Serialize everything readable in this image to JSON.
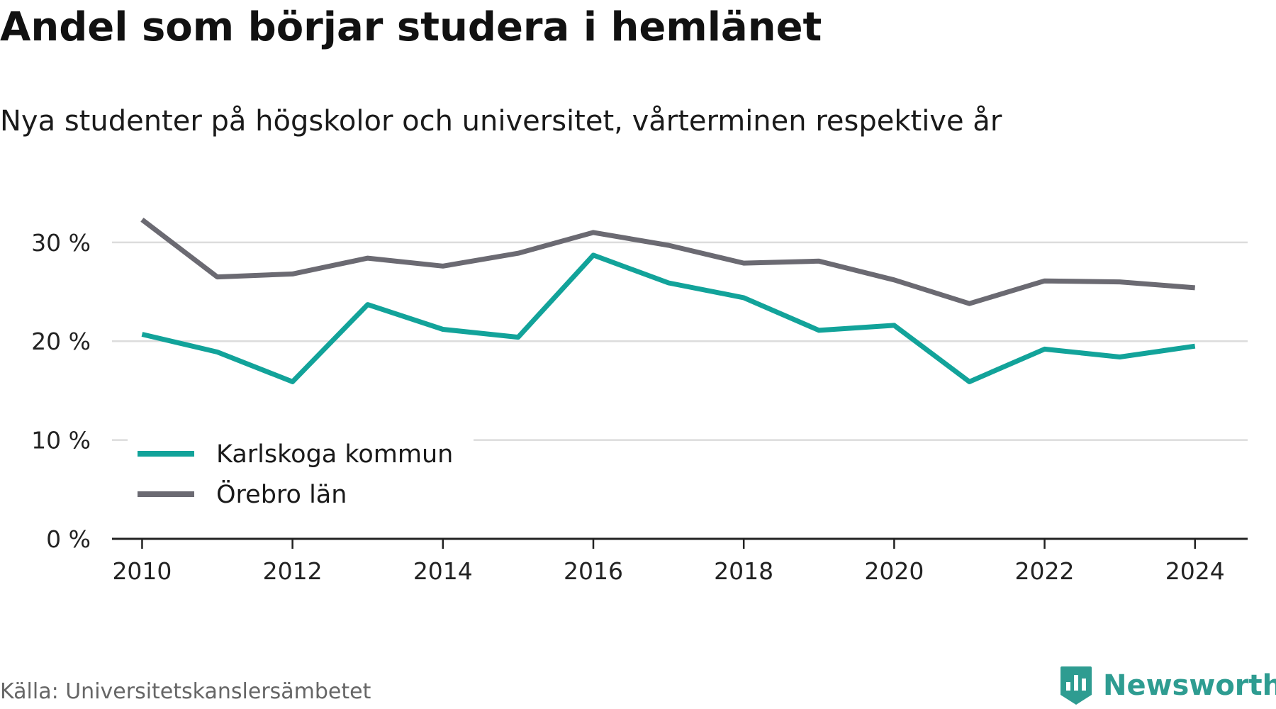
{
  "colors": {
    "karlskoga": "#12a39a",
    "orebro": "#6b6a72",
    "grid": "#dcdcdc",
    "axis": "#222222",
    "brand": "#2e9c91"
  },
  "footer": {
    "source": "Källa: Universitetskanslersämbetet",
    "brand": "Newsworthy",
    "brand_icon": "bar-chart-icon"
  },
  "chart_data": {
    "type": "line",
    "title": "Andel som börjar studera i hemlänet",
    "subtitle": "Nya studenter på högskolor och universitet, vårterminen respektive år",
    "xlabel": "",
    "ylabel": "",
    "x": [
      2010,
      2011,
      2012,
      2013,
      2014,
      2015,
      2016,
      2017,
      2018,
      2019,
      2020,
      2021,
      2022,
      2023,
      2024
    ],
    "xticks": [
      2010,
      2012,
      2014,
      2016,
      2018,
      2020,
      2022,
      2024
    ],
    "yticks": [
      0,
      10,
      20,
      30
    ],
    "ytick_labels": [
      "0 %",
      "10 %",
      "20 %",
      "30 %"
    ],
    "ylim": [
      0,
      33
    ],
    "xlim": [
      2009.6,
      2024.7
    ],
    "grid": true,
    "legend_position": "bottom-left",
    "series": [
      {
        "name": "Karlskoga kommun",
        "color": "#12a39a",
        "values": [
          20.7,
          18.9,
          15.9,
          23.7,
          21.2,
          20.4,
          28.7,
          25.9,
          24.4,
          21.1,
          21.6,
          15.9,
          19.2,
          18.4,
          19.5
        ]
      },
      {
        "name": "Örebro län",
        "color": "#6b6a72",
        "values": [
          32.3,
          26.5,
          26.8,
          28.4,
          27.6,
          28.9,
          31.0,
          29.7,
          27.9,
          28.1,
          26.2,
          23.8,
          26.1,
          26.0,
          25.4
        ]
      }
    ]
  }
}
